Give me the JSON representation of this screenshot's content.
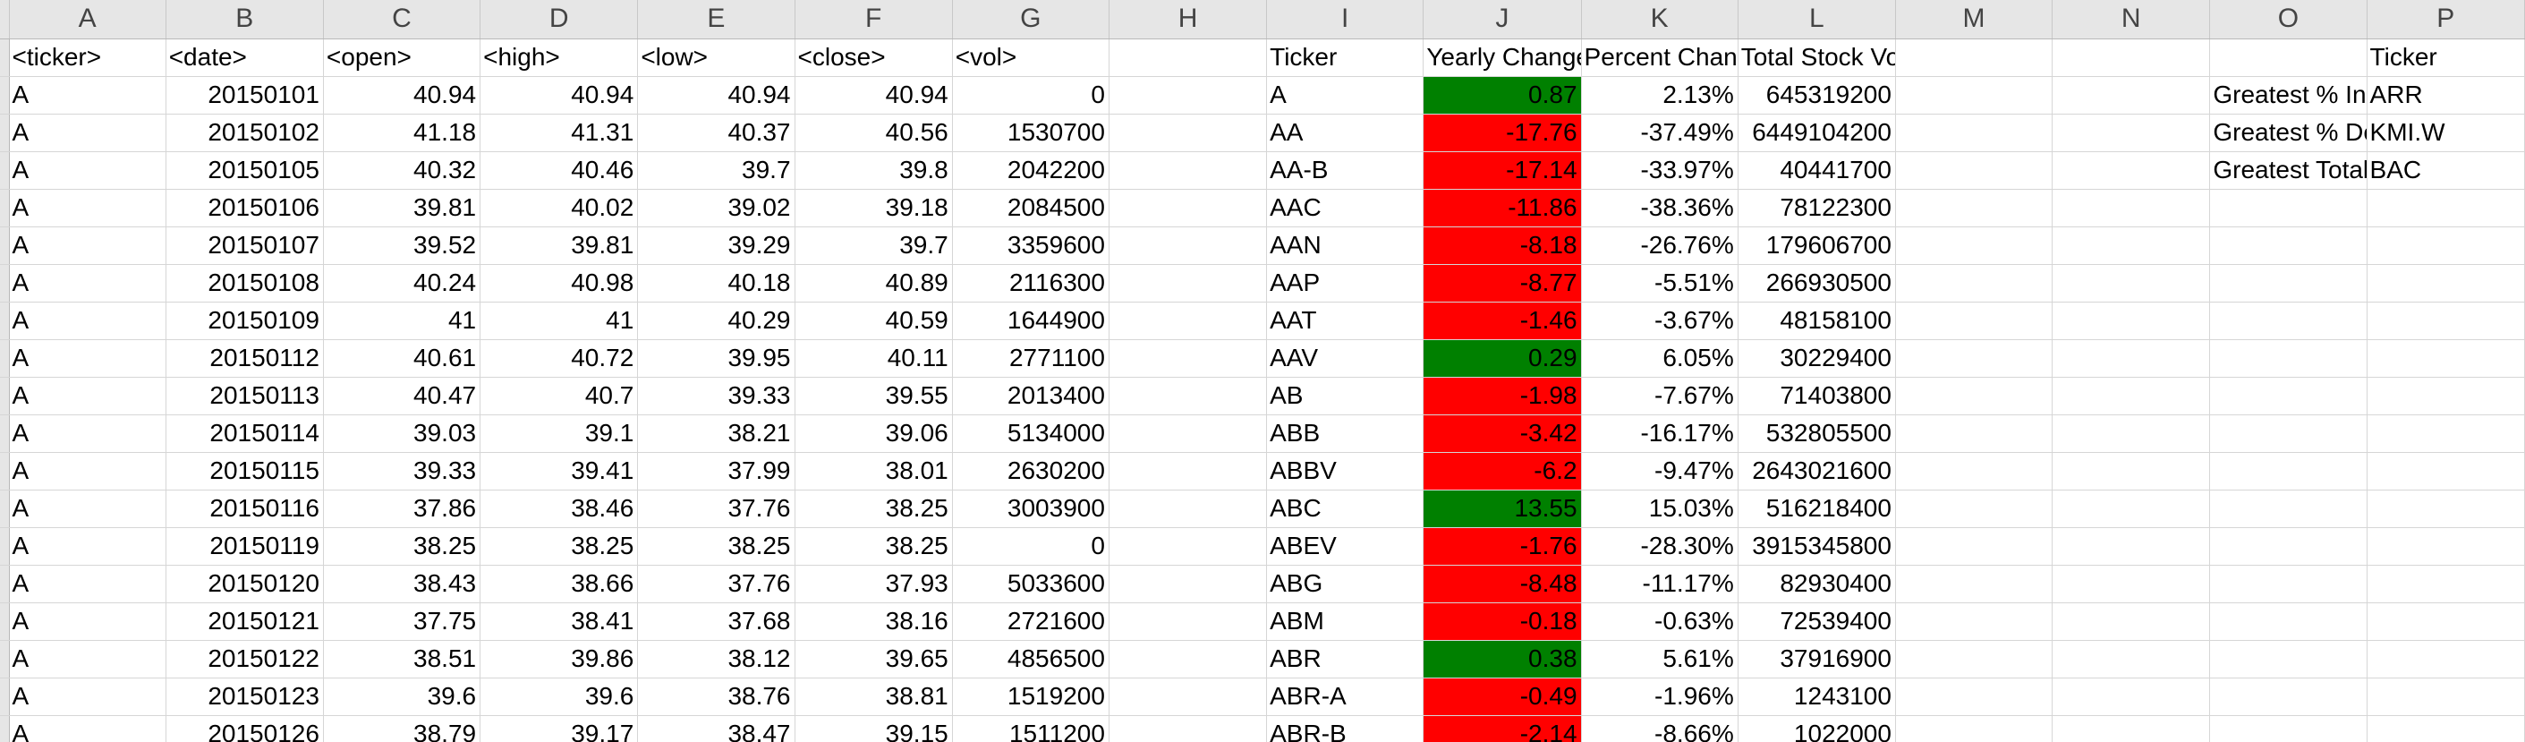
{
  "colors": {
    "positive_fill": "#008000",
    "negative_fill": "#ff0000",
    "header_bg": "#e6e6e6",
    "gridline": "#d6d6d6"
  },
  "columns": [
    "A",
    "B",
    "C",
    "D",
    "E",
    "F",
    "G",
    "H",
    "I",
    "J",
    "K",
    "L",
    "M",
    "N",
    "O",
    "P"
  ],
  "raw_headers": [
    "<ticker>",
    "<date>",
    "<open>",
    "<high>",
    "<low>",
    "<close>",
    "<vol>"
  ],
  "raw_rows": [
    [
      "A",
      "20150101",
      "40.94",
      "40.94",
      "40.94",
      "40.94",
      "0"
    ],
    [
      "A",
      "20150102",
      "41.18",
      "41.31",
      "40.37",
      "40.56",
      "1530700"
    ],
    [
      "A",
      "20150105",
      "40.32",
      "40.46",
      "39.7",
      "39.8",
      "2042200"
    ],
    [
      "A",
      "20150106",
      "39.81",
      "40.02",
      "39.02",
      "39.18",
      "2084500"
    ],
    [
      "A",
      "20150107",
      "39.52",
      "39.81",
      "39.29",
      "39.7",
      "3359600"
    ],
    [
      "A",
      "20150108",
      "40.24",
      "40.98",
      "40.18",
      "40.89",
      "2116300"
    ],
    [
      "A",
      "20150109",
      "41",
      "41",
      "40.29",
      "40.59",
      "1644900"
    ],
    [
      "A",
      "20150112",
      "40.61",
      "40.72",
      "39.95",
      "40.11",
      "2771100"
    ],
    [
      "A",
      "20150113",
      "40.47",
      "40.7",
      "39.33",
      "39.55",
      "2013400"
    ],
    [
      "A",
      "20150114",
      "39.03",
      "39.1",
      "38.21",
      "39.06",
      "5134000"
    ],
    [
      "A",
      "20150115",
      "39.33",
      "39.41",
      "37.99",
      "38.01",
      "2630200"
    ],
    [
      "A",
      "20150116",
      "37.86",
      "38.46",
      "37.76",
      "38.25",
      "3003900"
    ],
    [
      "A",
      "20150119",
      "38.25",
      "38.25",
      "38.25",
      "38.25",
      "0"
    ],
    [
      "A",
      "20150120",
      "38.43",
      "38.66",
      "37.76",
      "37.93",
      "5033600"
    ],
    [
      "A",
      "20150121",
      "37.75",
      "38.41",
      "37.68",
      "38.16",
      "2721600"
    ],
    [
      "A",
      "20150122",
      "38.51",
      "39.86",
      "38.12",
      "39.65",
      "4856500"
    ],
    [
      "A",
      "20150123",
      "39.6",
      "39.6",
      "38.76",
      "38.81",
      "1519200"
    ],
    [
      "A",
      "20150126",
      "38.79",
      "39.17",
      "38.47",
      "39.15",
      "1511200"
    ]
  ],
  "summary_headers": [
    "Ticker",
    "Yearly Change",
    "Percent Change",
    "Total Stock Volume"
  ],
  "summary_rows": [
    {
      "ticker": "A",
      "yearly_change": "0.87",
      "percent_change": "2.13%",
      "total_volume": "645319200",
      "positive": true
    },
    {
      "ticker": "AA",
      "yearly_change": "-17.76",
      "percent_change": "-37.49%",
      "total_volume": "6449104200",
      "positive": false
    },
    {
      "ticker": "AA-B",
      "yearly_change": "-17.14",
      "percent_change": "-33.97%",
      "total_volume": "40441700",
      "positive": false
    },
    {
      "ticker": "AAC",
      "yearly_change": "-11.86",
      "percent_change": "-38.36%",
      "total_volume": "78122300",
      "positive": false
    },
    {
      "ticker": "AAN",
      "yearly_change": "-8.18",
      "percent_change": "-26.76%",
      "total_volume": "179606700",
      "positive": false
    },
    {
      "ticker": "AAP",
      "yearly_change": "-8.77",
      "percent_change": "-5.51%",
      "total_volume": "266930500",
      "positive": false
    },
    {
      "ticker": "AAT",
      "yearly_change": "-1.46",
      "percent_change": "-3.67%",
      "total_volume": "48158100",
      "positive": false
    },
    {
      "ticker": "AAV",
      "yearly_change": "0.29",
      "percent_change": "6.05%",
      "total_volume": "30229400",
      "positive": true
    },
    {
      "ticker": "AB",
      "yearly_change": "-1.98",
      "percent_change": "-7.67%",
      "total_volume": "71403800",
      "positive": false
    },
    {
      "ticker": "ABB",
      "yearly_change": "-3.42",
      "percent_change": "-16.17%",
      "total_volume": "532805500",
      "positive": false
    },
    {
      "ticker": "ABBV",
      "yearly_change": "-6.2",
      "percent_change": "-9.47%",
      "total_volume": "2643021600",
      "positive": false
    },
    {
      "ticker": "ABC",
      "yearly_change": "13.55",
      "percent_change": "15.03%",
      "total_volume": "516218400",
      "positive": true
    },
    {
      "ticker": "ABEV",
      "yearly_change": "-1.76",
      "percent_change": "-28.30%",
      "total_volume": "3915345800",
      "positive": false
    },
    {
      "ticker": "ABG",
      "yearly_change": "-8.48",
      "percent_change": "-11.17%",
      "total_volume": "82930400",
      "positive": false
    },
    {
      "ticker": "ABM",
      "yearly_change": "-0.18",
      "percent_change": "-0.63%",
      "total_volume": "72539400",
      "positive": false
    },
    {
      "ticker": "ABR",
      "yearly_change": "0.38",
      "percent_change": "5.61%",
      "total_volume": "37916900",
      "positive": true
    },
    {
      "ticker": "ABR-A",
      "yearly_change": "-0.49",
      "percent_change": "-1.96%",
      "total_volume": "1243100",
      "positive": false
    },
    {
      "ticker": "ABR-B",
      "yearly_change": "-2.14",
      "percent_change": "-8.66%",
      "total_volume": "1022000",
      "positive": false
    }
  ],
  "greatest_header": "Ticker",
  "greatest_rows": [
    {
      "label": "Greatest % Increase",
      "ticker": "ARR"
    },
    {
      "label": "Greatest % Decrease",
      "ticker": "KMI.W"
    },
    {
      "label": "Greatest Total Volume",
      "ticker": "BAC"
    }
  ]
}
